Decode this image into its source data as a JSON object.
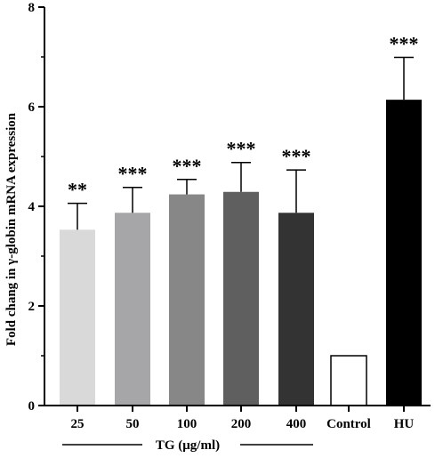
{
  "chart_data": {
    "type": "bar",
    "ylabel": "Fold chang in γ-globin mRNA expression",
    "ylim": [
      0,
      8
    ],
    "yticks": [
      "0",
      "2",
      "4",
      "6",
      "8"
    ],
    "group_label": "TG (μg/ml)",
    "categories": [
      "25",
      "50",
      "100",
      "200",
      "400",
      "Control",
      "HU"
    ],
    "values": [
      3.53,
      3.87,
      4.24,
      4.29,
      3.87,
      1.0,
      6.14
    ],
    "error_upper": [
      4.06,
      4.38,
      4.54,
      4.88,
      4.73,
      1.0,
      6.99
    ],
    "significance": [
      "**",
      "***",
      "***",
      "***",
      "***",
      "",
      "***"
    ],
    "bar_colors": [
      "#d9d9d9",
      "#a6a6a8",
      "#878787",
      "#5f5f5f",
      "#333333",
      "#ffffff",
      "#000000"
    ],
    "grid": false
  }
}
